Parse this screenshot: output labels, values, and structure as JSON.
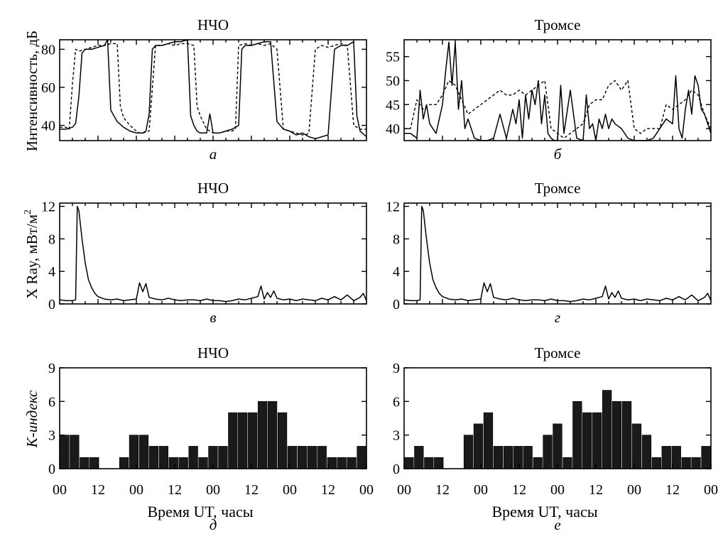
{
  "chart_data": [
    {
      "id": "a",
      "type": "line",
      "title": "НЧО",
      "panel_label": "а",
      "ylabel": "Интенсивность, дБ",
      "xlim": [
        0,
        96
      ],
      "ylim": [
        32,
        85
      ],
      "yticks": [
        40,
        60,
        80
      ],
      "grid": false,
      "series": [
        {
          "style": "solid",
          "x": [
            0,
            2,
            4,
            5,
            6,
            7,
            8,
            10,
            12,
            14,
            15,
            16,
            17,
            18,
            20,
            22,
            24,
            26,
            27,
            28,
            29,
            30,
            32,
            34,
            36,
            38,
            40,
            41,
            42,
            43,
            44,
            46,
            47,
            48,
            50,
            52,
            54,
            56,
            57,
            58,
            59,
            60,
            62,
            64,
            66,
            68,
            70,
            72,
            74,
            76,
            78,
            80,
            82,
            84,
            86,
            88,
            90,
            91,
            92,
            93,
            94,
            96
          ],
          "y": [
            38,
            38,
            39,
            41,
            55,
            78,
            80,
            80,
            81,
            82,
            85,
            48,
            45,
            42,
            39,
            37,
            36,
            36,
            37,
            46,
            80,
            82,
            82,
            83,
            84,
            84,
            85,
            45,
            40,
            37,
            36,
            36,
            46,
            36,
            36,
            37,
            38,
            40,
            80,
            82,
            82,
            82,
            83,
            84,
            84,
            42,
            38,
            37,
            35,
            36,
            34,
            33,
            34,
            35,
            80,
            82,
            82,
            83,
            84,
            45,
            37,
            34
          ]
        },
        {
          "style": "dashed",
          "x": [
            0,
            2,
            3,
            4,
            5,
            6,
            8,
            10,
            12,
            14,
            16,
            18,
            19,
            20,
            22,
            24,
            25,
            26,
            28,
            30,
            32,
            34,
            36,
            38,
            40,
            42,
            43,
            44,
            46,
            48,
            50,
            52,
            54,
            55,
            56,
            58,
            60,
            62,
            64,
            66,
            68,
            70,
            72,
            74,
            76,
            77,
            78,
            80,
            82,
            84,
            86,
            88,
            90,
            92,
            94,
            96
          ],
          "y": [
            39,
            39,
            38,
            62,
            80,
            79,
            80,
            81,
            82,
            82,
            83,
            83,
            50,
            44,
            40,
            37,
            36,
            36,
            37,
            82,
            82,
            83,
            82,
            83,
            83,
            82,
            50,
            45,
            38,
            36,
            36,
            37,
            37,
            38,
            82,
            83,
            82,
            83,
            82,
            83,
            80,
            38,
            37,
            36,
            35,
            35,
            36,
            80,
            82,
            81,
            82,
            83,
            82,
            40,
            38,
            38
          ]
        }
      ]
    },
    {
      "id": "b",
      "type": "line",
      "title": "Тромсе",
      "panel_label": "б",
      "ylabel": "",
      "xlim": [
        0,
        96
      ],
      "ylim": [
        37.5,
        58.5
      ],
      "yticks": [
        40,
        45,
        50,
        55
      ],
      "grid": false,
      "series": [
        {
          "style": "solid",
          "x": [
            0,
            2,
            4,
            5,
            6,
            7,
            8,
            10,
            12,
            13,
            14,
            15,
            16,
            17,
            18,
            19,
            20,
            22,
            24,
            26,
            28,
            30,
            32,
            34,
            35,
            36,
            37,
            38,
            39,
            40,
            41,
            42,
            43,
            44,
            45,
            46,
            47,
            48,
            49,
            50,
            52,
            54,
            56,
            57,
            58,
            59,
            60,
            61,
            62,
            63,
            64,
            65,
            66,
            68,
            70,
            72,
            74,
            76,
            78,
            80,
            82,
            84,
            85,
            86,
            87,
            88,
            89,
            90,
            91,
            92,
            93,
            94,
            96
          ],
          "y": [
            39,
            39,
            38,
            48,
            42,
            45,
            41,
            39,
            45,
            52,
            58,
            49,
            58,
            44,
            50,
            40,
            42,
            38,
            37,
            37,
            38,
            43,
            38,
            44,
            41,
            46,
            38,
            47,
            42,
            48,
            45,
            50,
            41,
            47,
            39,
            38,
            37,
            36,
            49,
            39,
            48,
            38,
            36,
            47,
            40,
            41,
            37,
            42,
            40,
            43,
            40,
            42,
            41,
            40,
            38,
            37,
            37,
            36,
            38,
            40,
            42,
            41,
            51,
            40,
            38,
            44,
            48,
            43,
            51,
            49,
            44,
            43,
            39
          ]
        },
        {
          "style": "dashed",
          "x": [
            0,
            2,
            4,
            6,
            8,
            10,
            12,
            14,
            16,
            18,
            20,
            22,
            24,
            26,
            28,
            30,
            32,
            34,
            36,
            38,
            40,
            42,
            44,
            46,
            48,
            50,
            52,
            54,
            56,
            58,
            60,
            62,
            64,
            66,
            68,
            70,
            72,
            74,
            76,
            78,
            80,
            82,
            84,
            86,
            88,
            90,
            92,
            94,
            96
          ],
          "y": [
            40,
            40,
            46,
            44,
            45,
            45,
            47,
            50,
            49,
            46,
            43,
            44,
            45,
            46,
            47,
            48,
            47,
            47,
            48,
            47,
            48,
            49,
            50,
            40,
            39,
            38,
            39,
            40,
            41,
            45,
            46,
            46,
            49,
            50,
            48,
            50,
            40,
            39,
            40,
            40,
            40,
            45,
            44,
            45,
            46,
            48,
            47,
            43,
            40
          ]
        }
      ]
    },
    {
      "id": "c",
      "type": "line",
      "title": "НЧО",
      "panel_label": "в",
      "ylabel": "X Ray, мВт/м",
      "ylabel_sup": "2",
      "xlim": [
        0,
        96
      ],
      "ylim": [
        0,
        12.4
      ],
      "yticks": [
        0,
        4,
        8,
        12
      ],
      "grid": false,
      "series": [
        {
          "style": "solid",
          "x": [
            0,
            2,
            4,
            5,
            5.5,
            6,
            7,
            8,
            9,
            10,
            11,
            12,
            14,
            16,
            18,
            20,
            22,
            24,
            25,
            26,
            27,
            28,
            30,
            32,
            34,
            36,
            38,
            40,
            42,
            44,
            46,
            48,
            50,
            52,
            54,
            56,
            58,
            60,
            62,
            63,
            64,
            65,
            66,
            67,
            68,
            70,
            72,
            74,
            76,
            78,
            80,
            82,
            84,
            86,
            88,
            90,
            92,
            94,
            95,
            96
          ],
          "y": [
            0.5,
            0.4,
            0.4,
            0.5,
            12,
            11.5,
            8,
            5,
            3,
            2,
            1.3,
            0.9,
            0.6,
            0.5,
            0.6,
            0.4,
            0.5,
            0.6,
            2.6,
            1.5,
            2.5,
            0.8,
            0.6,
            0.5,
            0.7,
            0.5,
            0.4,
            0.5,
            0.5,
            0.4,
            0.6,
            0.4,
            0.4,
            0.3,
            0.4,
            0.6,
            0.5,
            0.7,
            0.9,
            2.2,
            0.6,
            1.4,
            0.8,
            1.6,
            0.7,
            0.5,
            0.6,
            0.4,
            0.6,
            0.5,
            0.4,
            0.7,
            0.5,
            0.9,
            0.5,
            1.1,
            0.4,
            0.8,
            1.3,
            0.4
          ]
        }
      ]
    },
    {
      "id": "d",
      "type": "line",
      "title": "Тромсе",
      "panel_label": "г",
      "ylabel": "",
      "xlim": [
        0,
        96
      ],
      "ylim": [
        0,
        12.4
      ],
      "yticks": [
        0,
        4,
        8,
        12
      ],
      "grid": false,
      "series": [
        {
          "style": "solid",
          "x": [
            0,
            2,
            4,
            5,
            5.5,
            6,
            7,
            8,
            9,
            10,
            11,
            12,
            14,
            16,
            18,
            20,
            22,
            24,
            25,
            26,
            27,
            28,
            30,
            32,
            34,
            36,
            38,
            40,
            42,
            44,
            46,
            48,
            50,
            52,
            54,
            56,
            58,
            60,
            62,
            63,
            64,
            65,
            66,
            67,
            68,
            70,
            72,
            74,
            76,
            78,
            80,
            82,
            84,
            86,
            88,
            90,
            92,
            94,
            95,
            96
          ],
          "y": [
            0.5,
            0.4,
            0.4,
            0.5,
            12,
            11.5,
            8,
            5,
            3,
            2,
            1.3,
            0.9,
            0.6,
            0.5,
            0.6,
            0.4,
            0.5,
            0.6,
            2.6,
            1.5,
            2.5,
            0.8,
            0.6,
            0.5,
            0.7,
            0.5,
            0.4,
            0.5,
            0.5,
            0.4,
            0.6,
            0.4,
            0.4,
            0.3,
            0.4,
            0.6,
            0.5,
            0.7,
            0.9,
            2.2,
            0.6,
            1.4,
            0.8,
            1.6,
            0.7,
            0.5,
            0.6,
            0.4,
            0.6,
            0.5,
            0.4,
            0.7,
            0.5,
            0.9,
            0.5,
            1.1,
            0.4,
            0.8,
            1.3,
            0.4
          ]
        }
      ]
    },
    {
      "id": "e",
      "type": "bar",
      "title": "НЧО",
      "panel_label": "д",
      "ylabel": "K-индекс",
      "xlabel": "Время UT, часы",
      "xlim": [
        0,
        96
      ],
      "ylim": [
        0,
        9
      ],
      "yticks": [
        0,
        3,
        6,
        9
      ],
      "xticks": [
        0,
        12,
        24,
        36,
        48,
        60,
        72,
        84,
        96
      ],
      "xticklabels": [
        "00",
        "12",
        "00",
        "12",
        "00",
        "12",
        "00",
        "12",
        "00"
      ],
      "grid": false,
      "values": [
        3,
        3,
        1,
        1,
        0,
        0,
        1,
        3,
        3,
        2,
        2,
        1,
        1,
        2,
        1,
        2,
        2,
        5,
        5,
        5,
        6,
        6,
        5,
        2,
        2,
        2,
        2,
        1,
        1,
        1,
        2
      ]
    },
    {
      "id": "f",
      "type": "bar",
      "title": "Тромсе",
      "panel_label": "е",
      "ylabel": "",
      "xlabel": "Время UT, часы",
      "xlim": [
        0,
        96
      ],
      "ylim": [
        0,
        9
      ],
      "yticks": [
        0,
        3,
        6,
        9
      ],
      "xticks": [
        0,
        12,
        24,
        36,
        48,
        60,
        72,
        84,
        96
      ],
      "xticklabels": [
        "00",
        "12",
        "00",
        "12",
        "00",
        "12",
        "00",
        "12",
        "00"
      ],
      "grid": false,
      "values": [
        1,
        2,
        1,
        1,
        0,
        0,
        3,
        4,
        5,
        2,
        2,
        2,
        2,
        1,
        3,
        4,
        1,
        6,
        5,
        5,
        7,
        6,
        6,
        4,
        3,
        1,
        2,
        2,
        1,
        1,
        2
      ]
    }
  ]
}
